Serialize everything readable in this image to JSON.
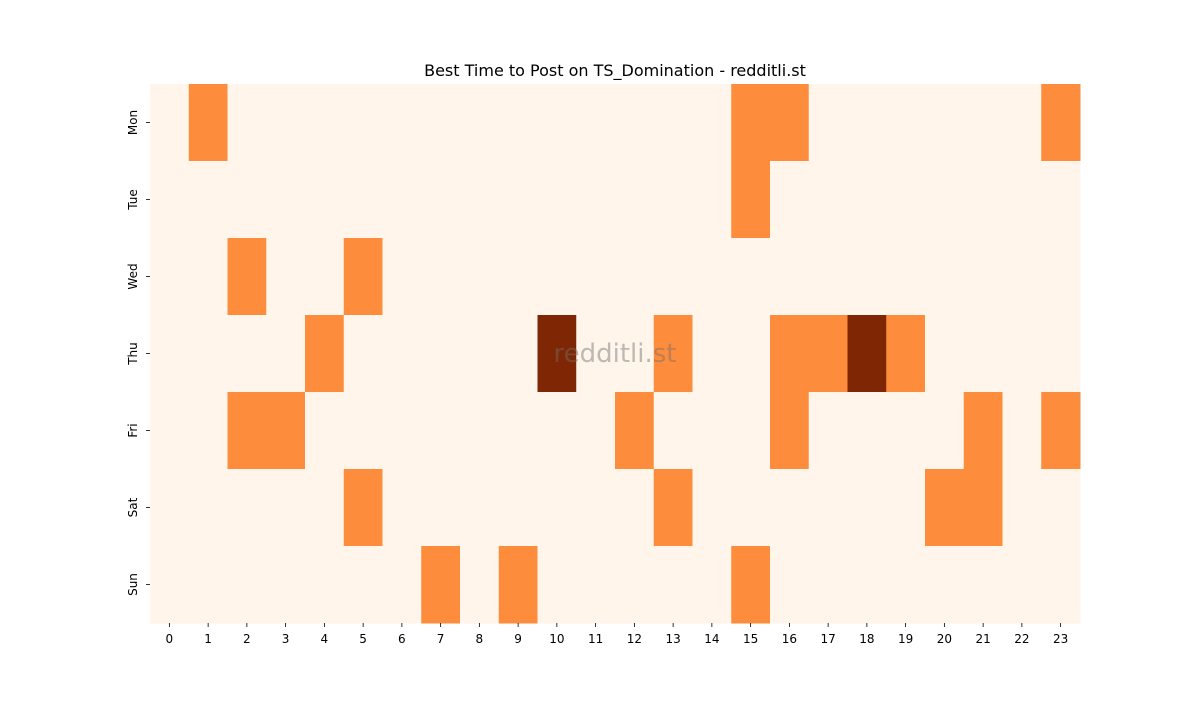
{
  "chart_data": {
    "type": "heatmap",
    "title": "Best Time to Post on TS_Domination - redditli.st",
    "watermark": "redditli.st",
    "x_categories": [
      "0",
      "1",
      "2",
      "3",
      "4",
      "5",
      "6",
      "7",
      "8",
      "9",
      "10",
      "11",
      "12",
      "13",
      "14",
      "15",
      "16",
      "17",
      "18",
      "19",
      "20",
      "21",
      "22",
      "23"
    ],
    "y_categories": [
      "Mon",
      "Tue",
      "Wed",
      "Thu",
      "Fri",
      "Sat",
      "Sun"
    ],
    "values": [
      [
        0,
        1,
        0,
        0,
        0,
        0,
        0,
        0,
        0,
        0,
        0,
        0,
        0,
        0,
        0,
        1,
        1,
        0,
        0,
        0,
        0,
        0,
        0,
        1
      ],
      [
        0,
        0,
        0,
        0,
        0,
        0,
        0,
        0,
        0,
        0,
        0,
        0,
        0,
        0,
        0,
        1,
        0,
        0,
        0,
        0,
        0,
        0,
        0,
        0
      ],
      [
        0,
        0,
        1,
        0,
        0,
        1,
        0,
        0,
        0,
        0,
        0,
        0,
        0,
        0,
        0,
        0,
        0,
        0,
        0,
        0,
        0,
        0,
        0,
        0
      ],
      [
        0,
        0,
        0,
        0,
        1,
        0,
        0,
        0,
        0,
        0,
        2,
        0,
        0,
        1,
        0,
        0,
        1,
        1,
        2,
        1,
        0,
        0,
        0,
        0
      ],
      [
        0,
        0,
        1,
        1,
        0,
        0,
        0,
        0,
        0,
        0,
        0,
        0,
        1,
        0,
        0,
        0,
        1,
        0,
        0,
        0,
        0,
        1,
        0,
        1
      ],
      [
        0,
        0,
        0,
        0,
        0,
        1,
        0,
        0,
        0,
        0,
        0,
        0,
        0,
        1,
        0,
        0,
        0,
        0,
        0,
        0,
        1,
        1,
        0,
        0
      ],
      [
        0,
        0,
        0,
        0,
        0,
        0,
        0,
        1,
        0,
        1,
        0,
        0,
        0,
        0,
        0,
        1,
        0,
        0,
        0,
        0,
        0,
        0,
        0,
        0
      ]
    ],
    "colorscale": {
      "0": "#fff5eb",
      "1": "#fd8d3c",
      "2": "#7f2704"
    },
    "colorbar": false,
    "grid": false
  }
}
